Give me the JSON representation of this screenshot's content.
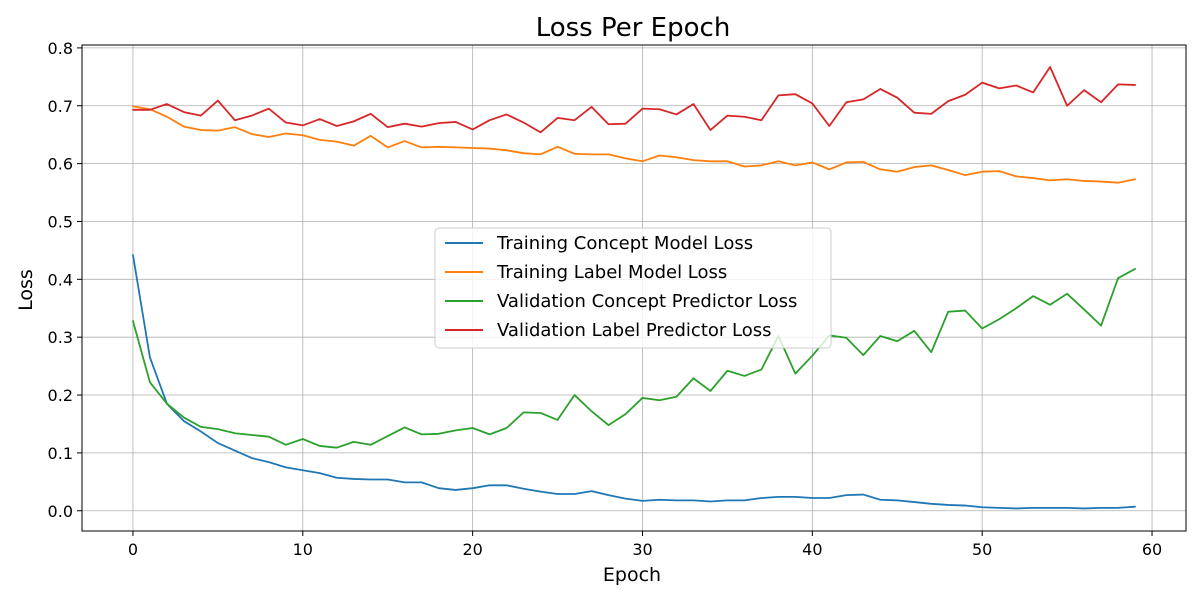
{
  "chart_data": {
    "type": "line",
    "title": "Loss Per Epoch",
    "xlabel": "Epoch",
    "ylabel": "Loss",
    "xlim": [
      -3,
      62
    ],
    "ylim": [
      -0.035,
      0.805
    ],
    "xticks": [
      0,
      10,
      20,
      30,
      40,
      50,
      60
    ],
    "yticks": [
      0.0,
      0.1,
      0.2,
      0.3,
      0.4,
      0.5,
      0.6,
      0.7,
      0.8
    ],
    "grid": true,
    "legend_position": "center-right",
    "x": [
      0,
      1,
      2,
      3,
      4,
      5,
      6,
      7,
      8,
      9,
      10,
      11,
      12,
      13,
      14,
      15,
      16,
      17,
      18,
      19,
      20,
      21,
      22,
      23,
      24,
      25,
      26,
      27,
      28,
      29,
      30,
      31,
      32,
      33,
      34,
      35,
      36,
      37,
      38,
      39,
      40,
      41,
      42,
      43,
      44,
      45,
      46,
      47,
      48,
      49,
      50,
      51,
      52,
      53,
      54,
      55,
      56,
      57,
      58,
      59
    ],
    "series": [
      {
        "name": "Training Concept Model Loss",
        "color": "#1f77b4",
        "values": [
          0.442,
          0.265,
          0.185,
          0.155,
          0.137,
          0.117,
          0.104,
          0.091,
          0.084,
          0.075,
          0.07,
          0.065,
          0.057,
          0.055,
          0.054,
          0.054,
          0.049,
          0.049,
          0.039,
          0.036,
          0.039,
          0.044,
          0.044,
          0.038,
          0.033,
          0.029,
          0.029,
          0.034,
          0.027,
          0.021,
          0.017,
          0.019,
          0.018,
          0.018,
          0.016,
          0.018,
          0.018,
          0.022,
          0.024,
          0.024,
          0.022,
          0.022,
          0.027,
          0.028,
          0.019,
          0.018,
          0.015,
          0.012,
          0.01,
          0.009,
          0.006,
          0.005,
          0.004,
          0.005,
          0.005,
          0.005,
          0.004,
          0.005,
          0.005,
          0.007
        ]
      },
      {
        "name": "Training Label Model Loss",
        "color": "#ff7f0e",
        "values": [
          0.699,
          0.694,
          0.681,
          0.664,
          0.658,
          0.657,
          0.663,
          0.651,
          0.646,
          0.652,
          0.649,
          0.641,
          0.638,
          0.631,
          0.648,
          0.628,
          0.639,
          0.628,
          0.629,
          0.628,
          0.627,
          0.626,
          0.623,
          0.618,
          0.616,
          0.629,
          0.617,
          0.616,
          0.616,
          0.609,
          0.604,
          0.614,
          0.611,
          0.606,
          0.604,
          0.604,
          0.595,
          0.597,
          0.604,
          0.597,
          0.602,
          0.59,
          0.602,
          0.603,
          0.59,
          0.586,
          0.594,
          0.597,
          0.589,
          0.58,
          0.586,
          0.587,
          0.578,
          0.575,
          0.571,
          0.573,
          0.57,
          0.569,
          0.567,
          0.573
        ]
      },
      {
        "name": "Validation Concept Predictor Loss",
        "color": "#2ca02c",
        "values": [
          0.328,
          0.222,
          0.185,
          0.161,
          0.145,
          0.141,
          0.134,
          0.131,
          0.128,
          0.114,
          0.124,
          0.112,
          0.109,
          0.119,
          0.114,
          0.129,
          0.144,
          0.132,
          0.133,
          0.139,
          0.143,
          0.132,
          0.143,
          0.17,
          0.169,
          0.157,
          0.2,
          0.172,
          0.148,
          0.167,
          0.195,
          0.191,
          0.197,
          0.229,
          0.207,
          0.242,
          0.233,
          0.244,
          0.302,
          0.237,
          0.268,
          0.303,
          0.299,
          0.269,
          0.302,
          0.293,
          0.311,
          0.274,
          0.344,
          0.346,
          0.315,
          0.331,
          0.35,
          0.371,
          0.356,
          0.375,
          0.348,
          0.32,
          0.402,
          0.418
        ]
      },
      {
        "name": "Validation Label Predictor Loss",
        "color": "#d62728",
        "values": [
          0.693,
          0.693,
          0.703,
          0.689,
          0.683,
          0.709,
          0.675,
          0.683,
          0.695,
          0.671,
          0.666,
          0.677,
          0.665,
          0.673,
          0.686,
          0.663,
          0.669,
          0.664,
          0.67,
          0.672,
          0.659,
          0.675,
          0.685,
          0.671,
          0.654,
          0.679,
          0.675,
          0.698,
          0.668,
          0.669,
          0.695,
          0.694,
          0.685,
          0.703,
          0.658,
          0.683,
          0.681,
          0.675,
          0.718,
          0.72,
          0.704,
          0.665,
          0.706,
          0.711,
          0.729,
          0.714,
          0.688,
          0.686,
          0.708,
          0.719,
          0.74,
          0.73,
          0.735,
          0.723,
          0.767,
          0.7,
          0.727,
          0.706,
          0.737,
          0.736
        ]
      }
    ]
  }
}
